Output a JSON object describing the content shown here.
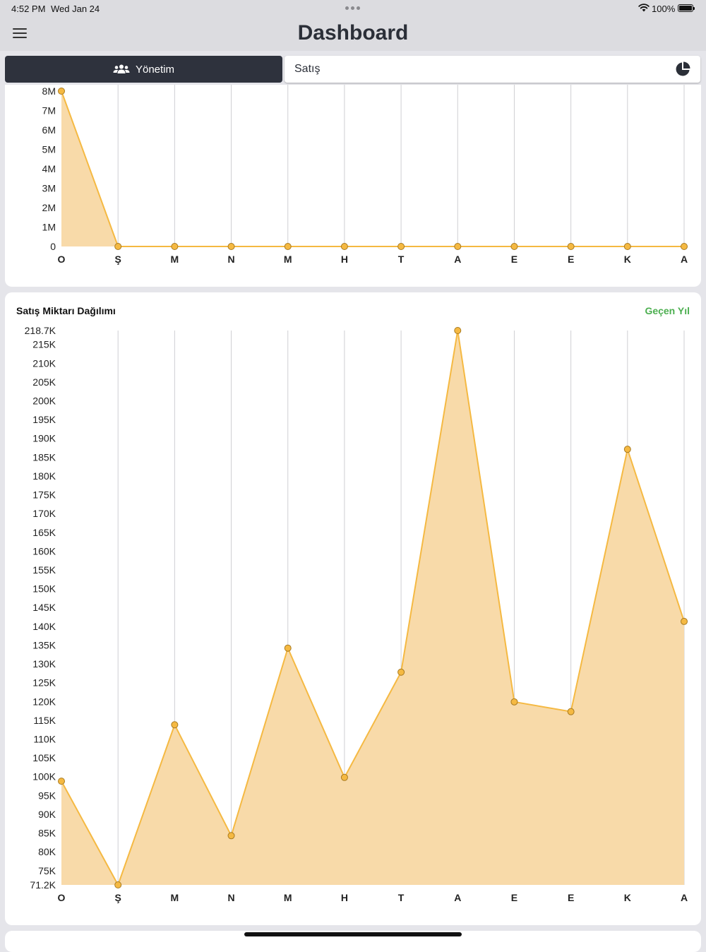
{
  "status": {
    "time": "4:52 PM",
    "date": "Wed Jan 24",
    "battery": "100%"
  },
  "header": {
    "title": "Dashboard"
  },
  "segments": {
    "left_label": "Yönetim",
    "right_label": "Satış"
  },
  "colors": {
    "accent": "#f5b942",
    "fill": "#f8daa9",
    "dark": "#2e323d",
    "green": "#4caf50"
  },
  "card2": {
    "title": "Satış Miktarı Dağılımı",
    "link": "Geçen Yıl"
  },
  "chart_data": [
    {
      "type": "area",
      "categories": [
        "O",
        "Ş",
        "M",
        "N",
        "M",
        "H",
        "T",
        "A",
        "E",
        "E",
        "K",
        "A"
      ],
      "values": [
        8000000,
        0,
        0,
        0,
        0,
        0,
        0,
        0,
        0,
        0,
        0,
        0
      ],
      "yticks": [
        "0",
        "1M",
        "2M",
        "3M",
        "4M",
        "5M",
        "6M",
        "7M",
        "8M"
      ],
      "ytick_values": [
        0,
        1000000,
        2000000,
        3000000,
        4000000,
        5000000,
        6000000,
        7000000,
        8000000
      ],
      "ylim": [
        0,
        8000000
      ],
      "grid": "vertical"
    },
    {
      "type": "area",
      "title": "Satış Miktarı Dağılımı",
      "categories": [
        "O",
        "Ş",
        "M",
        "N",
        "M",
        "H",
        "T",
        "A",
        "E",
        "E",
        "K",
        "A"
      ],
      "values": [
        98800,
        71200,
        113800,
        84300,
        134200,
        99800,
        127800,
        218700,
        119900,
        117300,
        187100,
        141300
      ],
      "yticks": [
        "71.2K",
        "75K",
        "80K",
        "85K",
        "90K",
        "95K",
        "100K",
        "105K",
        "110K",
        "115K",
        "120K",
        "125K",
        "130K",
        "135K",
        "140K",
        "145K",
        "150K",
        "155K",
        "160K",
        "165K",
        "170K",
        "175K",
        "180K",
        "185K",
        "190K",
        "195K",
        "200K",
        "205K",
        "210K",
        "215K",
        "218.7K"
      ],
      "ytick_values": [
        71200,
        75000,
        80000,
        85000,
        90000,
        95000,
        100000,
        105000,
        110000,
        115000,
        120000,
        125000,
        130000,
        135000,
        140000,
        145000,
        150000,
        155000,
        160000,
        165000,
        170000,
        175000,
        180000,
        185000,
        190000,
        195000,
        200000,
        205000,
        210000,
        215000,
        218700
      ],
      "ylim": [
        71200,
        218700
      ],
      "grid": "vertical"
    }
  ]
}
